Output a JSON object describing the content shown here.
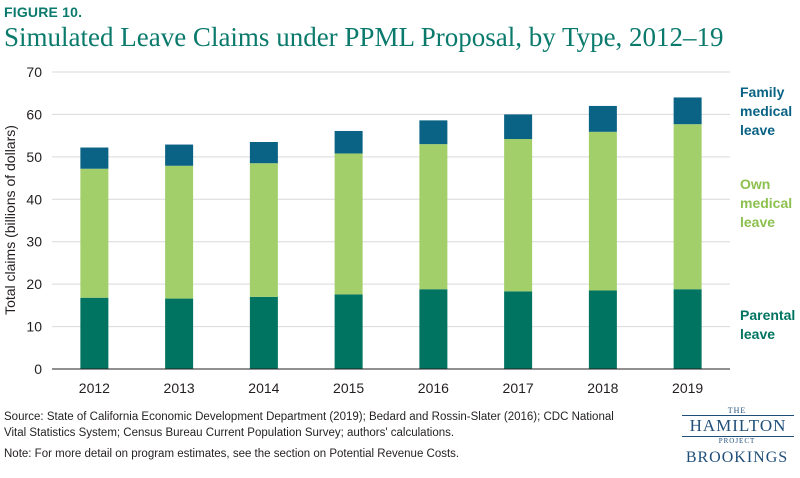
{
  "figure_label": "FIGURE 10.",
  "title": "Simulated Leave Claims under PPML Proposal, by Type, 2012–19",
  "source": "Source: State of California Economic Development Department (2019); Bedard and Rossin-Slater (2016); CDC National Vital Statistics System; Census Bureau Current Population Survey; authors' calculations.",
  "note": "Note: For more detail on program estimates, see the section on Potential Revenue Costs.",
  "logo": {
    "the": "THE",
    "hamilton": "HAMILTON",
    "project": "PROJECT",
    "brookings": "BROOKINGS"
  },
  "legend": {
    "family": [
      "Family",
      "medical",
      "leave"
    ],
    "own": [
      "Own",
      "medical",
      "leave"
    ],
    "parental": [
      "Parental",
      "leave"
    ]
  },
  "colors": {
    "parental": "#007461",
    "own": "#a3cf6b",
    "family": "#0a6384",
    "accent": "#0a7a6c"
  },
  "chart_data": {
    "type": "bar",
    "stacked": true,
    "categories": [
      "2012",
      "2013",
      "2014",
      "2015",
      "2016",
      "2017",
      "2018",
      "2019"
    ],
    "series": [
      {
        "name": "Parental leave",
        "values": [
          16.8,
          16.6,
          17.0,
          17.6,
          18.8,
          18.3,
          18.5,
          18.8
        ]
      },
      {
        "name": "Own medical leave",
        "values": [
          30.4,
          31.3,
          31.5,
          33.2,
          34.2,
          35.9,
          37.4,
          38.9
        ]
      },
      {
        "name": "Family medical leave",
        "values": [
          5.0,
          5.0,
          5.0,
          5.3,
          5.6,
          5.8,
          6.1,
          6.3
        ]
      }
    ],
    "ylabel": "Total claims (billions of dollars)",
    "xlabel": "",
    "ylim": [
      0,
      70
    ],
    "yticks": [
      0,
      10,
      20,
      30,
      40,
      50,
      60,
      70
    ],
    "grid": true
  }
}
